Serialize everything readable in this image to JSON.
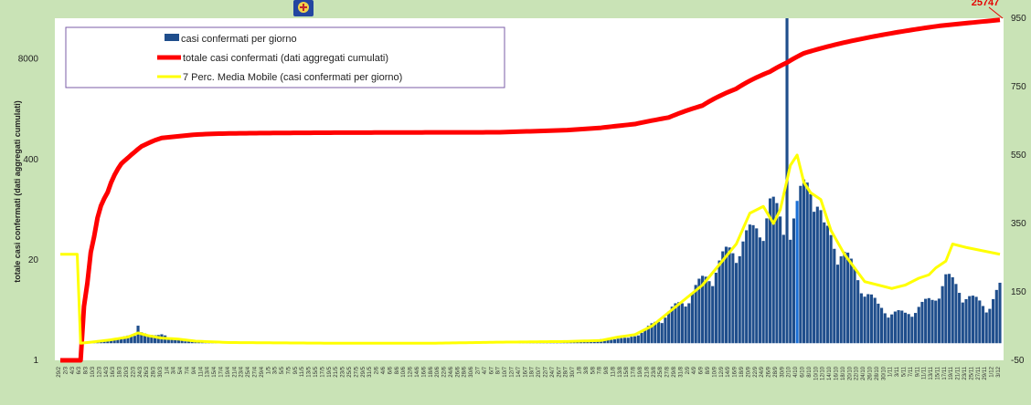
{
  "chart_data": {
    "type": "bar+line",
    "title": "",
    "ylabel_left": "totale casi confermati (dati aggregati cumulati)",
    "ylabel_right": "",
    "left_axis": {
      "scale": "log",
      "ticks": [
        "1",
        "20",
        "400",
        "8000"
      ]
    },
    "right_axis": {
      "scale": "linear",
      "min": -50,
      "max": 950,
      "ticks": [
        "-50",
        "150",
        "350",
        "550",
        "750",
        "950"
      ]
    },
    "final_value_label": "25747",
    "legend": {
      "placement": "top-left",
      "items": [
        {
          "label": "casi confermati per giorno",
          "color": "#1f4e8c",
          "kind": "bar"
        },
        {
          "label": "totale casi confermati (dati aggregati cumulati)",
          "color": "#ff0000",
          "kind": "line"
        },
        {
          "label": "7 Perc. Media Mobile (casi confermati per giorno)",
          "color": "#ffff00",
          "kind": "line"
        }
      ]
    },
    "colors": {
      "bars": "#1f4e8c",
      "cumulative": "#ff0000",
      "moving_avg": "#ffff00",
      "highlight_bar": "#1a6fd6"
    },
    "daily_anchors": [
      [
        0,
        0
      ],
      [
        6,
        0
      ],
      [
        8,
        5
      ],
      [
        12,
        8
      ],
      [
        15,
        10
      ],
      [
        18,
        14
      ],
      [
        20,
        20
      ],
      [
        22,
        25
      ],
      [
        23,
        55
      ],
      [
        24,
        30
      ],
      [
        26,
        20
      ],
      [
        28,
        22
      ],
      [
        30,
        30
      ],
      [
        32,
        15
      ],
      [
        34,
        12
      ],
      [
        36,
        8
      ],
      [
        38,
        5
      ],
      [
        40,
        3
      ],
      [
        45,
        2
      ],
      [
        60,
        1
      ],
      [
        110,
        1
      ],
      [
        130,
        3
      ],
      [
        150,
        6
      ],
      [
        160,
        10
      ],
      [
        168,
        14
      ],
      [
        172,
        30
      ],
      [
        175,
        50
      ],
      [
        180,
        85
      ],
      [
        185,
        120
      ],
      [
        190,
        170
      ],
      [
        195,
        220
      ],
      [
        200,
        270
      ],
      [
        205,
        300
      ],
      [
        210,
        380
      ],
      [
        214,
        320
      ],
      [
        215,
        950
      ],
      [
        216,
        320
      ],
      [
        218,
        360
      ],
      [
        222,
        480
      ],
      [
        226,
        300
      ],
      [
        230,
        280
      ],
      [
        234,
        210
      ],
      [
        238,
        150
      ],
      [
        242,
        100
      ],
      [
        246,
        85
      ],
      [
        250,
        80
      ],
      [
        254,
        100
      ],
      [
        258,
        120
      ],
      [
        262,
        180
      ],
      [
        266,
        150
      ],
      [
        270,
        120
      ],
      [
        274,
        100
      ],
      [
        278,
        150
      ]
    ],
    "moving_avg_anchors": [
      [
        6,
        0
      ],
      [
        10,
        4
      ],
      [
        15,
        10
      ],
      [
        20,
        18
      ],
      [
        23,
        30
      ],
      [
        26,
        22
      ],
      [
        30,
        15
      ],
      [
        35,
        12
      ],
      [
        40,
        6
      ],
      [
        50,
        2
      ],
      [
        80,
        0
      ],
      [
        110,
        0
      ],
      [
        130,
        3
      ],
      [
        150,
        5
      ],
      [
        160,
        8
      ],
      [
        165,
        18
      ],
      [
        170,
        25
      ],
      [
        175,
        50
      ],
      [
        180,
        90
      ],
      [
        185,
        130
      ],
      [
        190,
        170
      ],
      [
        195,
        230
      ],
      [
        200,
        290
      ],
      [
        204,
        380
      ],
      [
        208,
        400
      ],
      [
        211,
        350
      ],
      [
        213,
        390
      ],
      [
        216,
        520
      ],
      [
        218,
        550
      ],
      [
        220,
        470
      ],
      [
        222,
        440
      ],
      [
        225,
        420
      ],
      [
        228,
        330
      ],
      [
        232,
        260
      ],
      [
        235,
        220
      ],
      [
        238,
        180
      ],
      [
        242,
        170
      ],
      [
        246,
        160
      ],
      [
        250,
        170
      ],
      [
        254,
        190
      ],
      [
        257,
        200
      ],
      [
        259,
        220
      ],
      [
        262,
        240
      ],
      [
        264,
        290
      ],
      [
        268,
        280
      ],
      [
        273,
        270
      ],
      [
        278,
        260
      ]
    ],
    "cumulative_anchors": [
      [
        0,
        1
      ],
      [
        6,
        1
      ],
      [
        7,
        5
      ],
      [
        8,
        10
      ],
      [
        10,
        40
      ],
      [
        12,
        100
      ],
      [
        14,
        150
      ],
      [
        16,
        250
      ],
      [
        18,
        350
      ],
      [
        20,
        420
      ],
      [
        22,
        500
      ],
      [
        24,
        590
      ],
      [
        26,
        650
      ],
      [
        28,
        710
      ],
      [
        30,
        760
      ],
      [
        35,
        800
      ],
      [
        40,
        840
      ],
      [
        45,
        860
      ],
      [
        50,
        870
      ],
      [
        60,
        880
      ],
      [
        80,
        890
      ],
      [
        100,
        895
      ],
      [
        130,
        900
      ],
      [
        150,
        960
      ],
      [
        160,
        1030
      ],
      [
        170,
        1150
      ],
      [
        180,
        1400
      ],
      [
        190,
        2000
      ],
      [
        200,
        3300
      ],
      [
        210,
        5500
      ],
      [
        215,
        7200
      ],
      [
        220,
        9500
      ],
      [
        230,
        12500
      ],
      [
        240,
        15500
      ],
      [
        250,
        18500
      ],
      [
        260,
        21500
      ],
      [
        270,
        23800
      ],
      [
        278,
        25747
      ]
    ],
    "x_ticks": [
      "29/2",
      "2/3",
      "4/3",
      "6/3",
      "8/3",
      "10/3",
      "12/3",
      "14/3",
      "16/3",
      "18/3",
      "20/3",
      "22/3",
      "24/3",
      "26/3",
      "28/3",
      "30/3",
      "1/4",
      "3/4",
      "5/4",
      "7/4",
      "9/4",
      "11/4",
      "13/4",
      "15/4",
      "17/4",
      "19/4",
      "21/4",
      "23/4",
      "25/4",
      "27/4",
      "29/4",
      "1/5",
      "3/5",
      "5/5",
      "7/5",
      "9/5",
      "11/5",
      "13/5",
      "15/5",
      "17/5",
      "19/5",
      "21/5",
      "23/5",
      "25/5",
      "27/5",
      "29/5",
      "31/5",
      "2/6",
      "4/6",
      "6/6",
      "8/6",
      "10/6",
      "12/6",
      "14/6",
      "16/6",
      "18/6",
      "20/6",
      "22/6",
      "24/6",
      "26/6",
      "28/6",
      "30/6",
      "2/7",
      "4/7",
      "6/7",
      "8/7",
      "10/7",
      "12/7",
      "14/7",
      "16/7",
      "18/7",
      "20/7",
      "22/7",
      "24/7",
      "26/7",
      "28/7",
      "30/7",
      "1/8",
      "3/8",
      "5/8",
      "7/8",
      "9/8",
      "11/8",
      "13/8",
      "15/8",
      "17/8",
      "19/8",
      "21/8",
      "23/8",
      "25/8",
      "27/8",
      "29/8",
      "31/8",
      "2/9",
      "4/9",
      "6/9",
      "8/9",
      "10/9",
      "12/9",
      "14/9",
      "16/9",
      "18/9",
      "20/9",
      "22/9",
      "24/9",
      "26/9",
      "28/9",
      "30/9",
      "2/10",
      "4/10",
      "6/10",
      "8/10",
      "10/10",
      "12/10",
      "14/10",
      "16/10",
      "18/10",
      "20/10",
      "22/10",
      "24/10",
      "26/10",
      "28/10",
      "30/10",
      "1/11",
      "3/11",
      "5/11",
      "7/11",
      "9/11",
      "11/11",
      "13/11",
      "15/11",
      "17/11",
      "19/11",
      "21/11",
      "23/11",
      "25/11",
      "27/11",
      "29/11",
      "1/12",
      "3/12",
      "5/12"
    ]
  },
  "logo_icon": "regional-coat-of-arms-icon"
}
